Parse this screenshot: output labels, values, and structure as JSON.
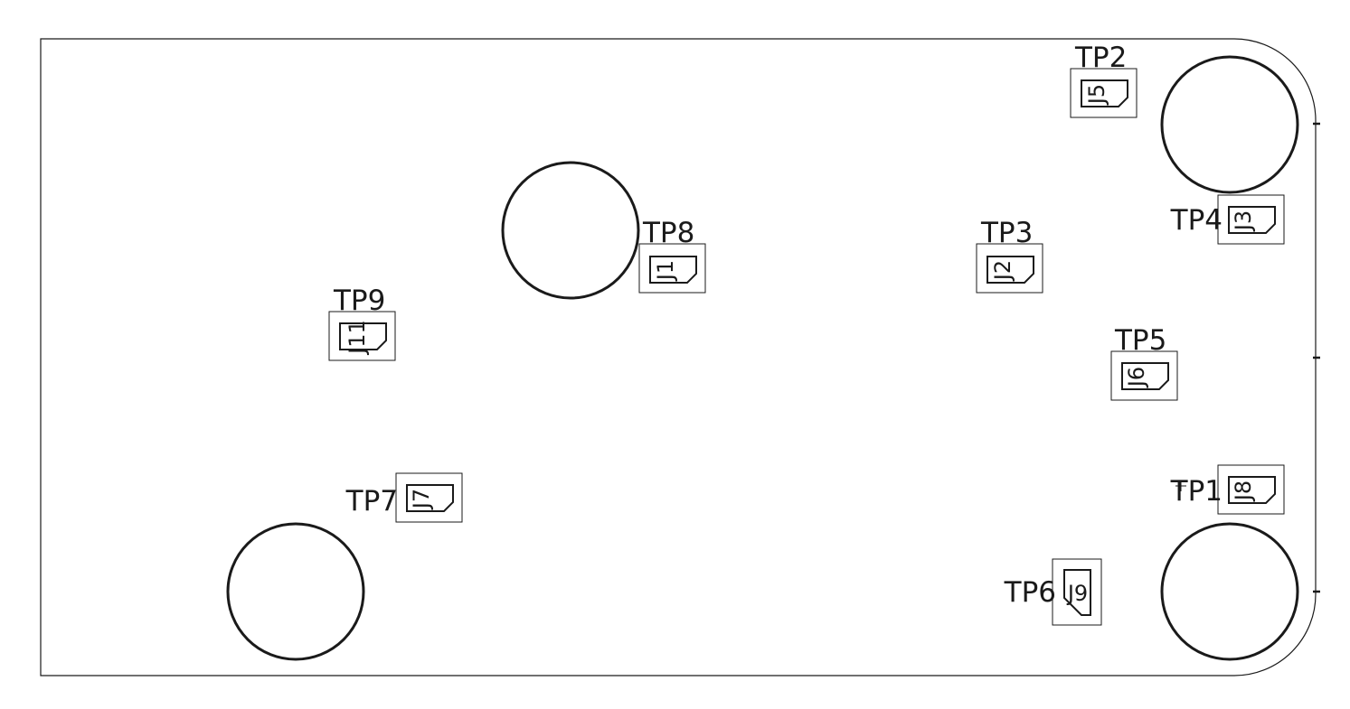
{
  "test_points": [
    {
      "label": "TP1",
      "designator": "J8"
    },
    {
      "label": "TP2",
      "designator": "J5"
    },
    {
      "label": "TP3",
      "designator": "J2"
    },
    {
      "label": "TP4",
      "designator": "J3"
    },
    {
      "label": "TP5",
      "designator": "J6"
    },
    {
      "label": "TP6",
      "designator": "J9"
    },
    {
      "label": "TP7",
      "designator": "J7"
    },
    {
      "label": "TP8",
      "designator": "J1"
    },
    {
      "label": "TP9",
      "designator": "J11"
    }
  ]
}
